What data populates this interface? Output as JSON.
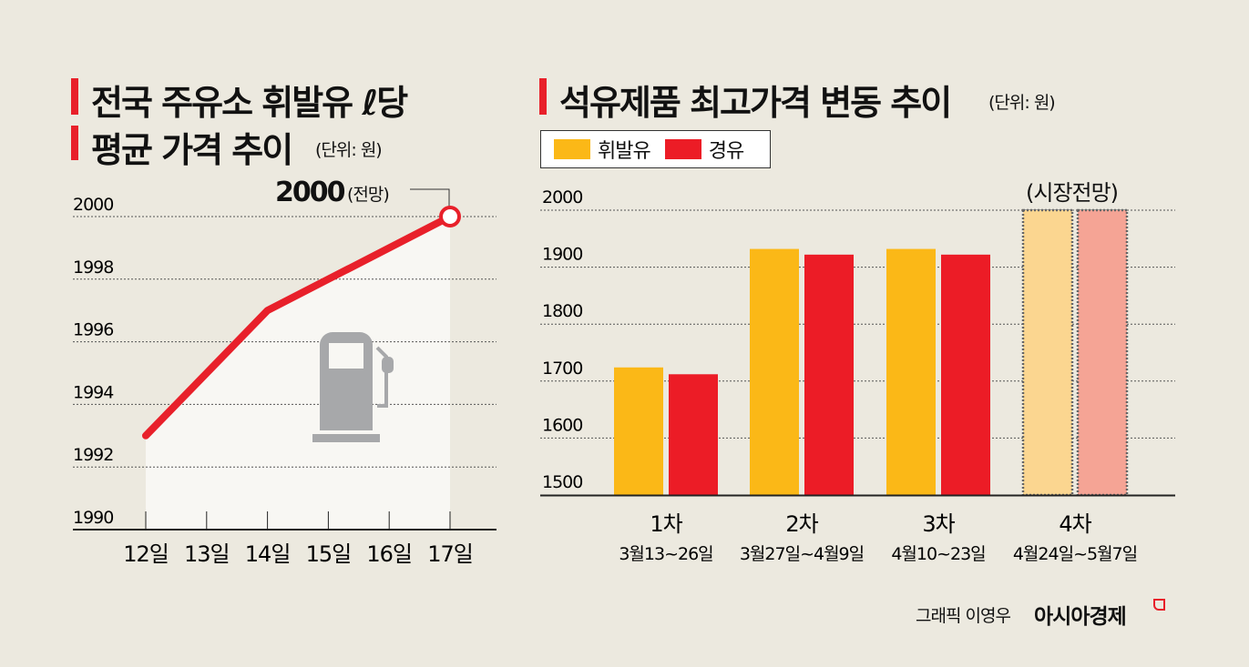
{
  "left": {
    "title_line1": "전국 주유소 휘발유 ℓ당",
    "title_line2": "평균 가격 추이",
    "unit": "(단위: 원)",
    "annotation_value": "2000",
    "annotation_note": "(전망)"
  },
  "right": {
    "title": "석유제품 최고가격 변동 추이",
    "unit": "(단위: 원)",
    "forecast_label": "(시장전망)"
  },
  "footer": {
    "credit": "그래픽 이영우",
    "brand": "아시아경제"
  },
  "colors": {
    "accent": "#e8202a",
    "gasoline": "#fbb817",
    "diesel": "#ec1c26",
    "gasoline_forecast": "#fbd690",
    "diesel_forecast": "#f5a495",
    "background": "#ece9df",
    "pump_icon": "#a7a8aa"
  },
  "chart_data": [
    {
      "type": "line",
      "x": [
        "12일",
        "13일",
        "14일",
        "15일",
        "16일",
        "17일"
      ],
      "points": [
        {
          "x": "12일",
          "y": 1993
        },
        {
          "x": "14일",
          "y": 1997
        },
        {
          "x": "17일",
          "y": 2000
        }
      ],
      "ylim": [
        1990,
        2000
      ],
      "yticks": [
        1990,
        1992,
        1994,
        1996,
        1998,
        2000
      ],
      "grid": true,
      "annotation": {
        "x": "17일",
        "text": "2000 (전망)"
      }
    },
    {
      "type": "bar",
      "categories": [
        "1차",
        "2차",
        "3차",
        "4차"
      ],
      "category_sublabels": [
        "3월13~26일",
        "3월27일~4월9일",
        "4월10~23일",
        "4월24일~5월7일"
      ],
      "series": [
        {
          "name": "휘발유",
          "values": [
            1724,
            1932,
            1932,
            2000
          ]
        },
        {
          "name": "경유",
          "values": [
            1712,
            1922,
            1922,
            2000
          ]
        }
      ],
      "forecast_category": "4차",
      "ylim": [
        1500,
        2000
      ],
      "yticks": [
        1500,
        1600,
        1700,
        1800,
        1900,
        2000
      ],
      "grid": true,
      "legend": "top-left"
    }
  ]
}
